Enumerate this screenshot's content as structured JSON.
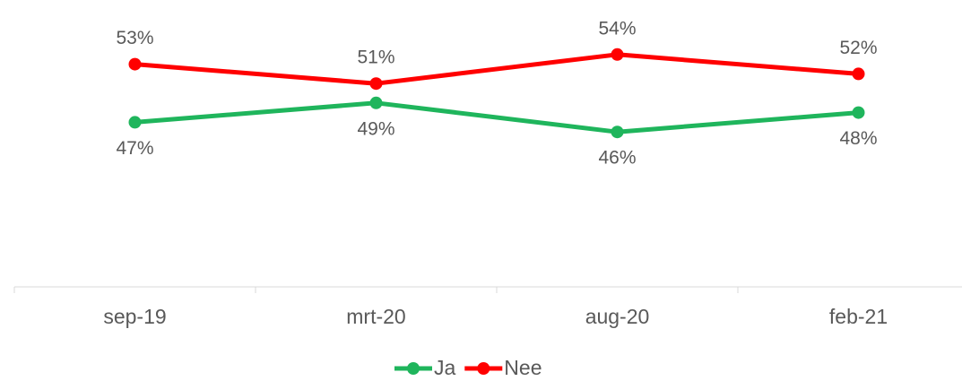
{
  "chart_data": {
    "type": "line",
    "categories": [
      "sep-19",
      "mrt-20",
      "aug-20",
      "feb-21"
    ],
    "series": [
      {
        "name": "Ja",
        "color": "#1fb55c",
        "values": [
          47,
          49,
          46,
          48
        ],
        "value_labels": [
          "47%",
          "49%",
          "46%",
          "48%"
        ]
      },
      {
        "name": "Nee",
        "color": "#ff0000",
        "values": [
          53,
          51,
          54,
          52
        ],
        "value_labels": [
          "53%",
          "51%",
          "54%",
          "52%"
        ]
      }
    ],
    "ylim": [
      30,
      60
    ],
    "legend": "bottom"
  }
}
